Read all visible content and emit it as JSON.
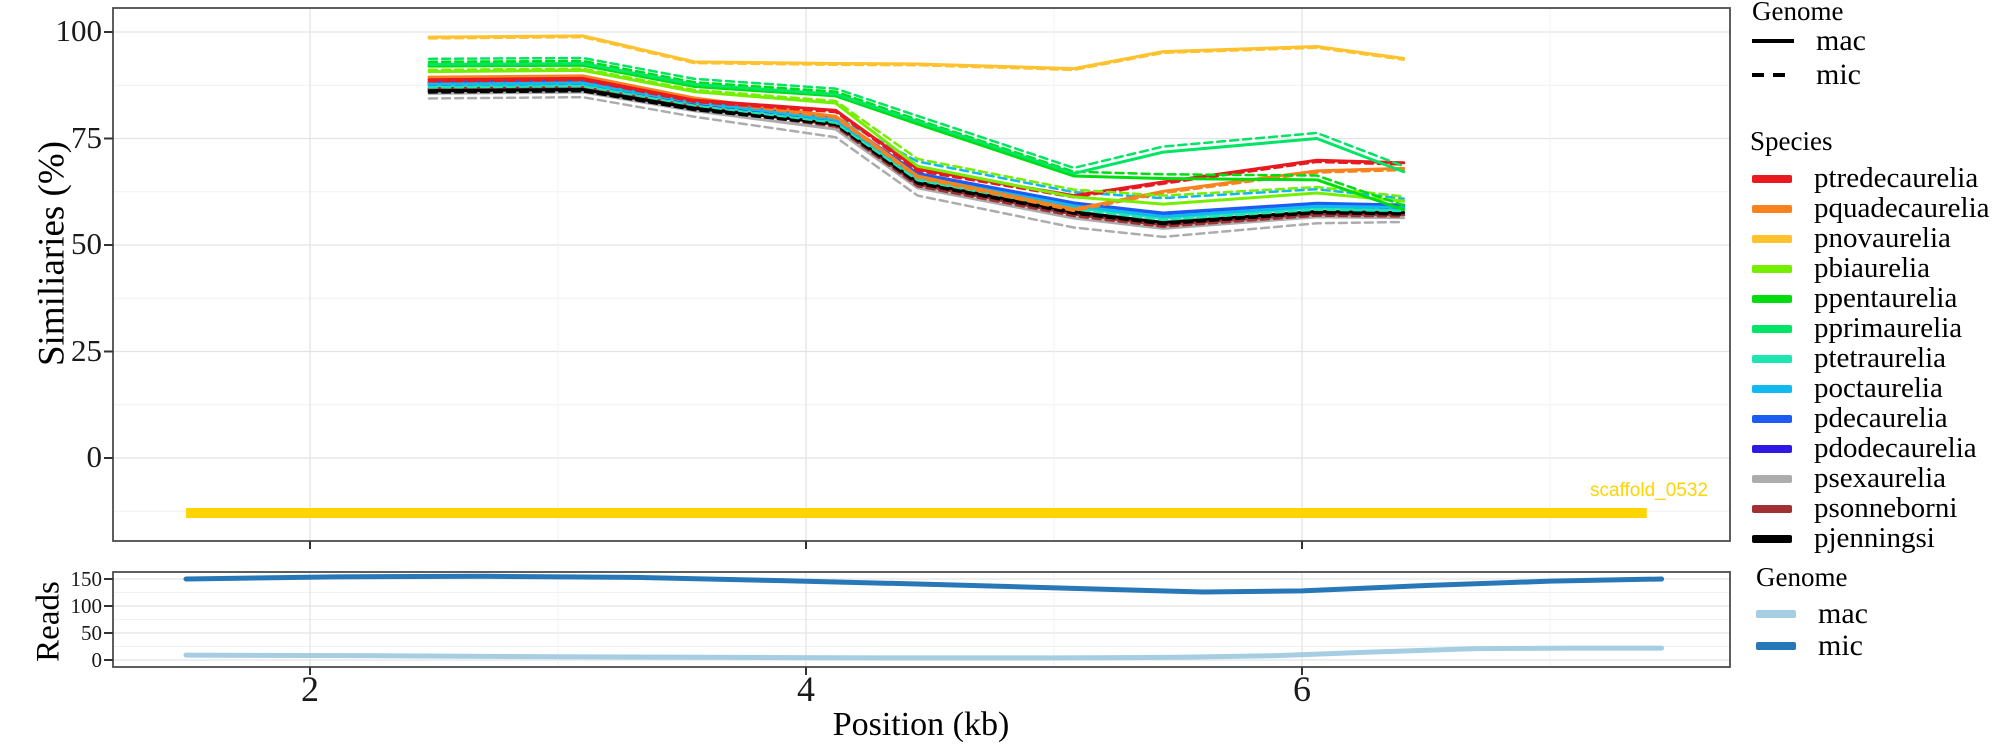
{
  "figure": {
    "top_ylabel": "Similiaries (%)",
    "bottom_ylabel": "Reads",
    "xlabel": "Position (kb)",
    "scaffold_label": "scaffold_0532",
    "scaffold_color": "#FFD400"
  },
  "genome_legend_top": {
    "title": "Genome",
    "items": [
      {
        "label": "mac",
        "style": "solid"
      },
      {
        "label": "mic",
        "style": "dashed"
      }
    ]
  },
  "species_legend": {
    "title": "Species"
  },
  "genome_legend_bottom": {
    "title": "Genome",
    "items": [
      {
        "label": "mac",
        "color": "#A6CEE3"
      },
      {
        "label": "mic",
        "color": "#2878B8"
      }
    ]
  },
  "chart_data": [
    {
      "type": "line",
      "panel": "similarity",
      "ylabel": "Similiaries (%)",
      "xlabel": "Position (kb)",
      "xticks": [
        2,
        4,
        6
      ],
      "yticks": [
        100,
        75,
        50,
        25,
        0
      ],
      "xlim": [
        1.2,
        7.75
      ],
      "ylim": [
        -18,
        105
      ],
      "grid": "major+minor",
      "legend_position": "right",
      "x": [
        2.48,
        3.1,
        3.55,
        4.12,
        4.45,
        5.08,
        5.44,
        6.06,
        6.41
      ],
      "scaffold": {
        "label": "scaffold_0532",
        "start_kb": 1.5,
        "end_kb": 7.39,
        "y_value": -12.9
      },
      "species": [
        {
          "name": "ptredecaurelia",
          "color": "#E8191F",
          "mac": [
            88.8,
            89.1,
            84.0,
            81.6,
            67.8,
            61.6,
            64.8,
            69.9,
            69.3
          ],
          "mic": [
            88.4,
            88.7,
            83.6,
            81.2,
            67.4,
            61.2,
            64.4,
            69.5,
            68.9
          ]
        },
        {
          "name": "pquadecaurelia",
          "color": "#F8821D",
          "mac": [
            89.4,
            89.7,
            84.5,
            80.2,
            66.2,
            58.4,
            62.6,
            67.4,
            68.0
          ],
          "mic": [
            89.0,
            89.3,
            84.1,
            79.8,
            65.8,
            58.0,
            62.2,
            67.0,
            67.6
          ]
        },
        {
          "name": "pnovaurelia",
          "color": "#FDC22D",
          "mac": [
            98.8,
            99.1,
            93.0,
            92.6,
            92.5,
            91.4,
            95.4,
            96.6,
            93.8
          ],
          "mic": [
            98.5,
            98.8,
            92.7,
            92.3,
            92.2,
            91.1,
            95.1,
            96.3,
            93.5
          ]
        },
        {
          "name": "pbiaurelia",
          "color": "#76EE00",
          "mac": [
            90.7,
            91.0,
            86.0,
            83.3,
            68.5,
            61.3,
            59.6,
            62.2,
            60.3
          ],
          "mic": [
            91.1,
            91.4,
            86.4,
            83.8,
            70.2,
            63.0,
            61.6,
            63.6,
            61.4
          ]
        },
        {
          "name": "ppentaurelia",
          "color": "#00DD0F",
          "mac": [
            92.0,
            92.2,
            87.2,
            85.0,
            78.4,
            66.2,
            65.6,
            65.3,
            58.3
          ],
          "mic": [
            93.0,
            93.2,
            88.2,
            86.0,
            79.4,
            67.2,
            66.6,
            66.3,
            59.3
          ]
        },
        {
          "name": "pprimaurelia",
          "color": "#00E565",
          "mac": [
            92.4,
            92.6,
            87.7,
            85.4,
            79.0,
            66.8,
            71.8,
            75.0,
            67.2
          ],
          "mic": [
            93.7,
            93.9,
            89.0,
            86.7,
            80.3,
            68.1,
            73.1,
            76.3,
            68.5
          ]
        },
        {
          "name": "ptetraurelia",
          "color": "#1FE5B2",
          "mac": [
            87.4,
            87.7,
            83.2,
            79.1,
            65.6,
            58.8,
            56.3,
            58.7,
            58.4
          ],
          "mic": [
            87.0,
            87.3,
            82.8,
            78.7,
            65.2,
            58.4,
            55.9,
            58.3,
            58.0
          ]
        },
        {
          "name": "poctaurelia",
          "color": "#12B9EF",
          "mac": [
            87.7,
            88.0,
            83.5,
            79.4,
            66.0,
            59.2,
            56.7,
            59.1,
            58.8
          ],
          "mic": [
            88.1,
            88.4,
            84.0,
            80.1,
            69.6,
            62.4,
            61.0,
            63.1,
            60.9
          ]
        },
        {
          "name": "pdecaurelia",
          "color": "#1C5CF3",
          "mac": [
            88.2,
            88.5,
            84.0,
            79.9,
            66.8,
            59.9,
            57.5,
            59.8,
            59.4
          ],
          "mic": [
            87.8,
            88.1,
            83.6,
            79.5,
            66.4,
            59.5,
            57.1,
            59.4,
            59.0
          ]
        },
        {
          "name": "pdodecaurelia",
          "color": "#3119E4",
          "mac": [
            88.0,
            88.3,
            83.7,
            79.7,
            66.4,
            59.6,
            57.1,
            59.5,
            59.1
          ],
          "mic": [
            87.6,
            87.9,
            83.3,
            79.3,
            66.0,
            59.2,
            56.7,
            59.1,
            58.7
          ]
        },
        {
          "name": "psexaurelia",
          "color": "#ACACAC",
          "mac": [
            85.6,
            85.9,
            81.5,
            77.2,
            63.4,
            56.3,
            53.9,
            56.6,
            56.4
          ],
          "mic": [
            84.4,
            84.7,
            80.1,
            75.3,
            61.6,
            54.1,
            51.9,
            55.1,
            55.4
          ]
        },
        {
          "name": "psonneborni",
          "color": "#A03033",
          "mac": [
            86.8,
            87.1,
            82.6,
            78.2,
            64.2,
            57.2,
            54.7,
            57.3,
            57.1
          ],
          "mic": [
            86.4,
            86.7,
            82.2,
            77.8,
            63.8,
            56.8,
            54.3,
            56.9,
            56.7
          ]
        },
        {
          "name": "pjenningsi",
          "color": "#000000",
          "mac": [
            86.2,
            86.5,
            82.1,
            78.6,
            64.8,
            57.8,
            55.3,
            57.9,
            57.6
          ],
          "mic": [
            85.8,
            86.1,
            81.7,
            78.2,
            64.4,
            57.4,
            54.9,
            57.5,
            57.2
          ]
        }
      ],
      "draw_order": [
        "psexaurelia",
        "psonneborni",
        "pjenningsi",
        "ptetraurelia",
        "pdodecaurelia",
        "pdecaurelia",
        "poctaurelia",
        "pquadecaurelia",
        "ptredecaurelia",
        "pbiaurelia",
        "ppentaurelia",
        "pprimaurelia",
        "pnovaurelia"
      ]
    },
    {
      "type": "line",
      "panel": "reads",
      "ylabel": "Reads",
      "yticks": [
        150,
        100,
        50,
        0
      ],
      "ylim": [
        -10,
        165
      ],
      "series": [
        {
          "name": "mac",
          "color": "#A6CEE3",
          "x": [
            1.5,
            2.2,
            3.0,
            3.6,
            4.3,
            5.0,
            5.5,
            5.9,
            6.3,
            6.7,
            7.1,
            7.45
          ],
          "values": [
            9,
            8,
            6,
            5,
            4,
            4,
            5,
            8,
            15,
            21,
            22,
            22
          ]
        },
        {
          "name": "mic",
          "color": "#2878B8",
          "x": [
            1.5,
            2.1,
            2.7,
            3.3,
            3.9,
            4.6,
            5.2,
            5.6,
            6.0,
            6.5,
            7.0,
            7.45
          ],
          "values": [
            150,
            154,
            155,
            153,
            147,
            139,
            131,
            126,
            128,
            138,
            146,
            150
          ]
        }
      ]
    }
  ]
}
